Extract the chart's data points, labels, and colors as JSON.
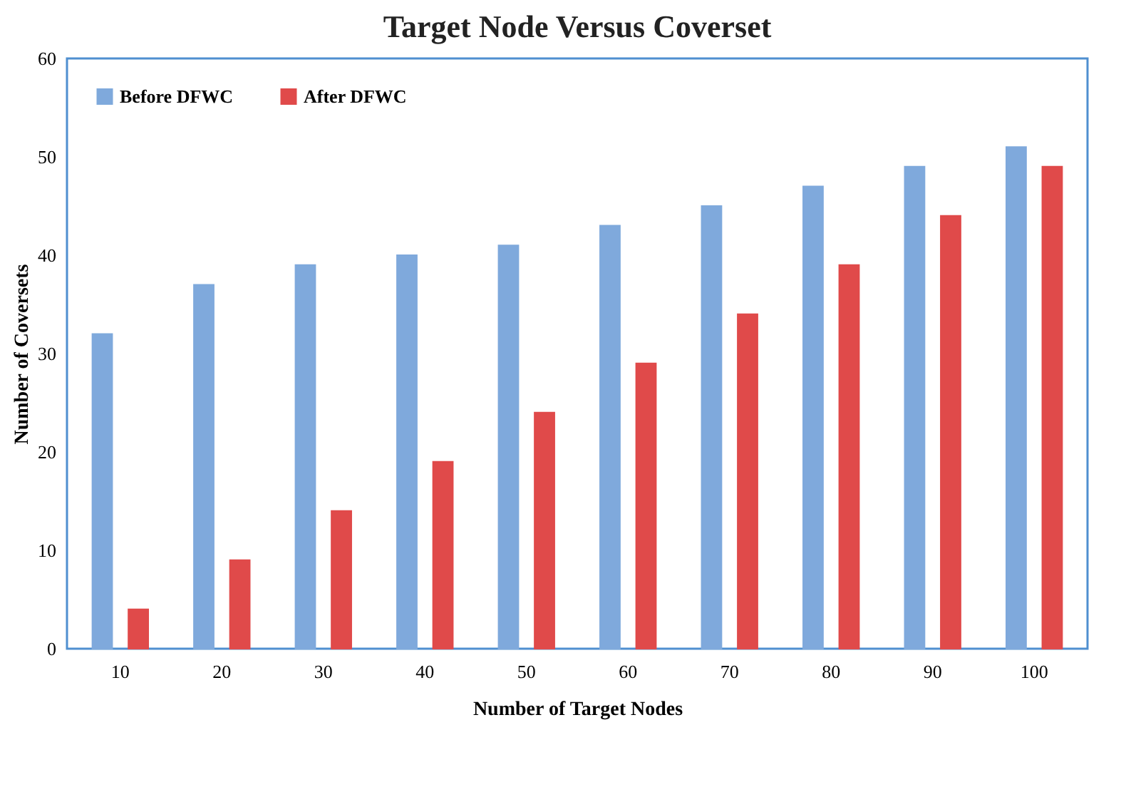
{
  "chart_data": {
    "type": "bar",
    "title": "Target Node Versus Coverset",
    "xlabel": "Number of Target Nodes",
    "ylabel": "Number of Coversets",
    "categories": [
      "10",
      "20",
      "30",
      "40",
      "50",
      "60",
      "70",
      "80",
      "90",
      "100"
    ],
    "series": [
      {
        "name": "Before DFWC",
        "color": "#7fa9dc",
        "values": [
          32,
          37,
          39,
          40,
          41,
          43,
          45,
          47,
          49,
          51
        ]
      },
      {
        "name": "After DFWC",
        "color": "#e04a4a",
        "values": [
          4,
          9,
          14,
          19,
          24,
          29,
          34,
          39,
          44,
          49
        ]
      }
    ],
    "ylim": [
      0,
      60
    ],
    "yticks": [
      0,
      10,
      20,
      30,
      40,
      50,
      60
    ],
    "grid": false,
    "legend": "top left"
  }
}
